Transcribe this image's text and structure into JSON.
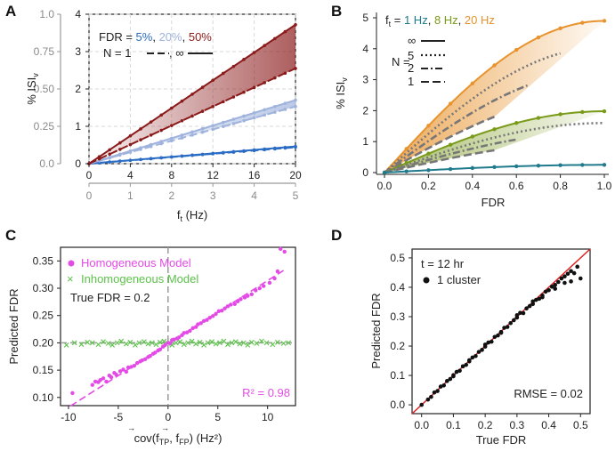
{
  "colors": {
    "blue": "#2b6cc4",
    "lightblue": "#9fb3dd",
    "red": "#8b1a1a",
    "orange": "#e8932d",
    "green": "#7a9a1a",
    "teal": "#1f7a8c",
    "magenta": "#e44be6",
    "lgreen": "#5cc24a",
    "gray": "#777777",
    "grid": "#d9d9d9"
  },
  "panels": {
    "A": {
      "label": "A",
      "ylabel": "% ISI",
      "ylabel_sub": "v",
      "xlabel": "f",
      "xlabel_sub": "t",
      "xlabel_unit": " (Hz)",
      "legend_fdr_prefix": "FDR = ",
      "legend_fdr": [
        "5%",
        "20%",
        "50%"
      ],
      "legend_n": "N = 1",
      "legend_n_sep": ", ∞"
    },
    "B": {
      "label": "B",
      "ylabel": "% ISI",
      "ylabel_sub": "v",
      "xlabel": "FDR",
      "legend_f": "f",
      "legend_f_sub": "t",
      "legend_f_eq": " = ",
      "legend_freqs": [
        "1 Hz",
        "8 Hz",
        "20 Hz"
      ],
      "legend_n_label": "N =",
      "legend_n_values": [
        "∞",
        "5",
        "2",
        "1"
      ]
    },
    "C": {
      "label": "C",
      "ylabel": "Predicted FDR",
      "xlabel": "cov(f",
      "xlabel_s1": "TP",
      "xlabel_mid": ", f",
      "xlabel_s2": "FP",
      "xlabel_end": ") (Hz²)",
      "legend_homo": "Homogeneous Model",
      "legend_inhomo": "Inhomogeneous Model",
      "true_fdr": "True FDR = 0.2",
      "r2": "R² = 0.98"
    },
    "D": {
      "label": "D",
      "ylabel": "Predicted FDR",
      "xlabel": "True FDR",
      "t_label": "t = 12 hr",
      "legend_cluster": "1 cluster",
      "rmse": "RMSE = 0.02"
    }
  },
  "chart_data": [
    {
      "id": "A",
      "type": "line",
      "x_top": [
        0,
        4,
        8,
        12,
        16,
        20
      ],
      "x_bottom": [
        0,
        1,
        2,
        3,
        4,
        5
      ],
      "xlim": [
        0,
        20
      ],
      "y_left": [
        0.0,
        0.25,
        0.5,
        0.75,
        1.0
      ],
      "y_right": [
        0,
        1,
        2,
        3,
        4
      ],
      "ylim": [
        0,
        4
      ],
      "series": [
        {
          "name": "FDR 5% N=∞",
          "color": "blue",
          "style": "solid",
          "x": [
            0,
            20
          ],
          "y": [
            0,
            0.46
          ]
        },
        {
          "name": "FDR 5% N=1",
          "color": "blue",
          "style": "dashed",
          "x": [
            0,
            20
          ],
          "y": [
            0,
            0.44
          ]
        },
        {
          "name": "FDR 20% N=∞",
          "color": "lightblue",
          "style": "solid",
          "x": [
            0,
            20
          ],
          "y": [
            0,
            1.7
          ]
        },
        {
          "name": "FDR 20% N=1",
          "color": "lightblue",
          "style": "dashed",
          "x": [
            0,
            20
          ],
          "y": [
            0,
            1.53
          ]
        },
        {
          "name": "FDR 50% N=∞",
          "color": "red",
          "style": "solid",
          "x": [
            0,
            20
          ],
          "y": [
            0,
            3.72
          ]
        },
        {
          "name": "FDR 50% N=1",
          "color": "red",
          "style": "dashed",
          "x": [
            0,
            20
          ],
          "y": [
            0,
            2.55
          ]
        }
      ]
    },
    {
      "id": "B",
      "type": "line",
      "x_ticks": [
        0.0,
        0.2,
        0.4,
        0.6,
        0.8,
        1.0
      ],
      "y_ticks": [
        0,
        1,
        2,
        3,
        4,
        5
      ],
      "xlim": [
        0,
        1
      ],
      "ylim": [
        0,
        5
      ],
      "series": [
        {
          "name": "20 Hz N=∞",
          "color": "orange",
          "style": "solid",
          "scale": 4.9,
          "xmax": 1.0
        },
        {
          "name": "20 Hz N=5",
          "color": "gray",
          "style": "dotted",
          "scale": 4.05,
          "xmax": 0.8
        },
        {
          "name": "20 Hz N=2",
          "color": "gray",
          "style": "dashdot",
          "scale": 3.3,
          "xmax": 0.65
        },
        {
          "name": "20 Hz N=1",
          "color": "gray",
          "style": "dashed",
          "scale": 2.55,
          "xmax": 0.5
        },
        {
          "name": "8 Hz N=∞",
          "color": "green",
          "style": "solid",
          "scale": 1.98,
          "xmax": 1.0
        },
        {
          "name": "8 Hz N=5",
          "color": "gray",
          "style": "dotted",
          "scale": 1.6,
          "xmax": 1.0
        },
        {
          "name": "8 Hz N=2",
          "color": "gray",
          "style": "dashdot",
          "scale": 1.32,
          "xmax": 0.6
        },
        {
          "name": "8 Hz N=1",
          "color": "gray",
          "style": "dashed",
          "scale": 1.02,
          "xmax": 0.5
        },
        {
          "name": "1 Hz N=∞",
          "color": "teal",
          "style": "solid",
          "scale": 0.25,
          "xmax": 1.0
        }
      ]
    },
    {
      "id": "C",
      "type": "scatter",
      "x_ticks": [
        -10,
        -5,
        0,
        5,
        10
      ],
      "y_ticks": [
        0.1,
        0.15,
        0.2,
        0.25,
        0.3,
        0.35
      ],
      "xlim": [
        -10.8,
        12.8
      ],
      "ylim": [
        0.085,
        0.375
      ],
      "fit": {
        "slope": 0.0116,
        "intercept": 0.198
      },
      "homogeneous_points": [
        [
          -9.6,
          0.108
        ],
        [
          -7.6,
          0.123
        ],
        [
          -7.3,
          0.129
        ],
        [
          -7.0,
          0.128
        ],
        [
          -6.8,
          0.132
        ],
        [
          -6.5,
          0.135
        ],
        [
          -6.2,
          0.129
        ],
        [
          -5.9,
          0.14
        ],
        [
          -5.7,
          0.137
        ],
        [
          -5.4,
          0.145
        ],
        [
          -5.2,
          0.142
        ],
        [
          -4.8,
          0.148
        ],
        [
          -4.5,
          0.151
        ],
        [
          -4.2,
          0.147
        ],
        [
          -4.0,
          0.155
        ],
        [
          -3.7,
          0.156
        ],
        [
          -3.4,
          0.158
        ],
        [
          -3.1,
          0.163
        ],
        [
          -2.8,
          0.166
        ],
        [
          -2.6,
          0.168
        ],
        [
          -2.3,
          0.17
        ],
        [
          -2.0,
          0.174
        ],
        [
          -1.8,
          0.176
        ],
        [
          -1.5,
          0.18
        ],
        [
          -1.3,
          0.182
        ],
        [
          -1.0,
          0.186
        ],
        [
          -0.8,
          0.188
        ],
        [
          -0.5,
          0.193
        ],
        [
          -0.3,
          0.196
        ],
        [
          0.0,
          0.2
        ],
        [
          0.2,
          0.199
        ],
        [
          0.4,
          0.205
        ],
        [
          0.6,
          0.206
        ],
        [
          0.9,
          0.208
        ],
        [
          1.1,
          0.21
        ],
        [
          1.4,
          0.214
        ],
        [
          1.6,
          0.218
        ],
        [
          1.9,
          0.219
        ],
        [
          2.2,
          0.222
        ],
        [
          2.5,
          0.227
        ],
        [
          2.8,
          0.229
        ],
        [
          3.0,
          0.234
        ],
        [
          3.3,
          0.236
        ],
        [
          3.6,
          0.24
        ],
        [
          3.9,
          0.242
        ],
        [
          4.2,
          0.246
        ],
        [
          4.5,
          0.249
        ],
        [
          4.8,
          0.253
        ],
        [
          5.1,
          0.258
        ],
        [
          5.4,
          0.259
        ],
        [
          5.7,
          0.263
        ],
        [
          6.0,
          0.267
        ],
        [
          6.3,
          0.27
        ],
        [
          6.7,
          0.271
        ],
        [
          7.0,
          0.276
        ],
        [
          7.3,
          0.28
        ],
        [
          7.7,
          0.283
        ],
        [
          8.0,
          0.286
        ],
        [
          8.4,
          0.289
        ],
        [
          8.8,
          0.296
        ],
        [
          9.2,
          0.3
        ],
        [
          9.6,
          0.304
        ],
        [
          10.2,
          0.31
        ],
        [
          10.7,
          0.318
        ],
        [
          11.0,
          0.331
        ],
        [
          11.3,
          0.372
        ],
        [
          11.7,
          0.367
        ]
      ],
      "inhomogeneous_points": [
        [
          -10.2,
          0.196
        ],
        [
          -9.4,
          0.2
        ],
        [
          -8.7,
          0.197
        ],
        [
          -8.1,
          0.201
        ],
        [
          -7.6,
          0.2
        ],
        [
          -7.0,
          0.197
        ],
        [
          -6.5,
          0.202
        ],
        [
          -6.0,
          0.199
        ],
        [
          -5.6,
          0.196
        ],
        [
          -5.1,
          0.2
        ],
        [
          -4.7,
          0.203
        ],
        [
          -4.2,
          0.198
        ],
        [
          -3.8,
          0.201
        ],
        [
          -3.3,
          0.196
        ],
        [
          -2.9,
          0.2
        ],
        [
          -2.4,
          0.202
        ],
        [
          -2.0,
          0.198
        ],
        [
          -1.6,
          0.2
        ],
        [
          -1.2,
          0.197
        ],
        [
          -0.8,
          0.201
        ],
        [
          -0.4,
          0.203
        ],
        [
          0.0,
          0.199
        ],
        [
          0.4,
          0.196
        ],
        [
          0.8,
          0.2
        ],
        [
          1.2,
          0.202
        ],
        [
          1.6,
          0.197
        ],
        [
          2.0,
          0.2
        ],
        [
          2.4,
          0.203
        ],
        [
          2.8,
          0.198
        ],
        [
          3.2,
          0.201
        ],
        [
          3.6,
          0.196
        ],
        [
          4.0,
          0.2
        ],
        [
          4.4,
          0.202
        ],
        [
          4.8,
          0.198
        ],
        [
          5.2,
          0.2
        ],
        [
          5.6,
          0.203
        ],
        [
          6.0,
          0.197
        ],
        [
          6.4,
          0.2
        ],
        [
          6.8,
          0.202
        ],
        [
          7.2,
          0.198
        ],
        [
          7.6,
          0.2
        ],
        [
          8.0,
          0.196
        ],
        [
          8.4,
          0.201
        ],
        [
          8.9,
          0.199
        ],
        [
          9.4,
          0.203
        ],
        [
          9.9,
          0.2
        ],
        [
          10.5,
          0.197
        ],
        [
          11.0,
          0.201
        ],
        [
          11.6,
          0.199
        ],
        [
          12.1,
          0.2
        ]
      ]
    },
    {
      "id": "D",
      "type": "scatter",
      "x_ticks": [
        0.0,
        0.1,
        0.2,
        0.3,
        0.4,
        0.5
      ],
      "y_ticks": [
        0.0,
        0.1,
        0.2,
        0.3,
        0.4,
        0.5
      ],
      "xlim": [
        -0.03,
        0.53
      ],
      "ylim": [
        -0.03,
        0.53
      ],
      "identity_line": true,
      "points": [
        [
          0.0,
          0.0
        ],
        [
          0.02,
          0.018
        ],
        [
          0.03,
          0.027
        ],
        [
          0.04,
          0.042
        ],
        [
          0.05,
          0.047
        ],
        [
          0.06,
          0.062
        ],
        [
          0.07,
          0.066
        ],
        [
          0.08,
          0.081
        ],
        [
          0.09,
          0.088
        ],
        [
          0.1,
          0.097
        ],
        [
          0.11,
          0.112
        ],
        [
          0.12,
          0.116
        ],
        [
          0.13,
          0.131
        ],
        [
          0.14,
          0.136
        ],
        [
          0.15,
          0.148
        ],
        [
          0.16,
          0.161
        ],
        [
          0.17,
          0.166
        ],
        [
          0.18,
          0.18
        ],
        [
          0.19,
          0.187
        ],
        [
          0.2,
          0.198
        ],
        [
          0.21,
          0.212
        ],
        [
          0.22,
          0.215
        ],
        [
          0.23,
          0.231
        ],
        [
          0.24,
          0.236
        ],
        [
          0.25,
          0.248
        ],
        [
          0.26,
          0.262
        ],
        [
          0.27,
          0.265
        ],
        [
          0.28,
          0.278
        ],
        [
          0.29,
          0.288
        ],
        [
          0.3,
          0.297
        ],
        [
          0.31,
          0.313
        ],
        [
          0.32,
          0.312
        ],
        [
          0.33,
          0.328
        ],
        [
          0.34,
          0.336
        ],
        [
          0.35,
          0.343
        ],
        [
          0.36,
          0.357
        ],
        [
          0.37,
          0.361
        ],
        [
          0.38,
          0.372
        ],
        [
          0.39,
          0.385
        ],
        [
          0.4,
          0.39
        ],
        [
          0.41,
          0.402
        ],
        [
          0.42,
          0.408
        ],
        [
          0.43,
          0.418
        ],
        [
          0.44,
          0.43
        ],
        [
          0.45,
          0.437
        ],
        [
          0.46,
          0.446
        ],
        [
          0.47,
          0.455
        ],
        [
          0.48,
          0.448
        ],
        [
          0.49,
          0.47
        ],
        [
          0.5,
          0.43
        ],
        [
          0.47,
          0.42
        ],
        [
          0.45,
          0.415
        ],
        [
          0.42,
          0.395
        ],
        [
          0.38,
          0.366
        ],
        [
          0.35,
          0.352
        ],
        [
          0.3,
          0.305
        ],
        [
          0.25,
          0.245
        ],
        [
          0.2,
          0.205
        ],
        [
          0.15,
          0.152
        ],
        [
          0.1,
          0.101
        ]
      ]
    }
  ]
}
